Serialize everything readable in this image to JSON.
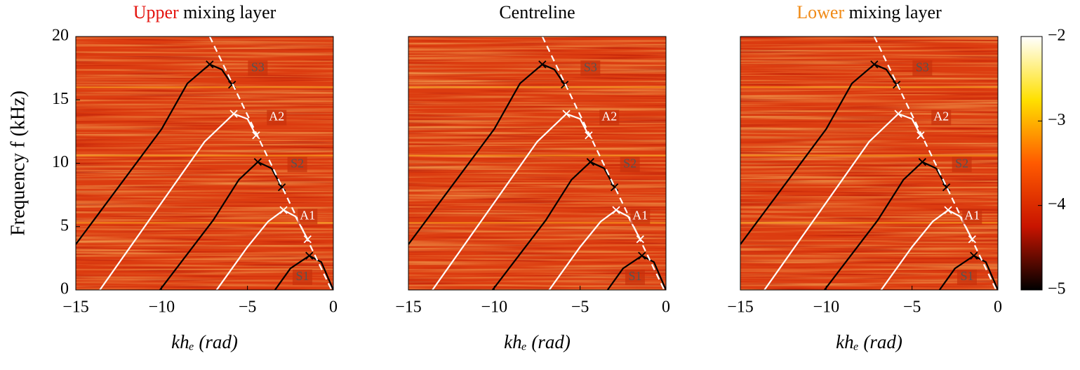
{
  "chart_data": [
    {
      "type": "line",
      "title_parts": [
        {
          "text": "Upper",
          "color": "#e4140f"
        },
        {
          "text": " mixing layer",
          "color": "#000"
        }
      ],
      "xlim": [
        -15,
        0
      ],
      "ylim": [
        0,
        20
      ],
      "xticks": [
        {
          "value": -15,
          "label": "−15"
        },
        {
          "value": -10,
          "label": "−10"
        },
        {
          "value": -5,
          "label": "−5"
        },
        0
      ],
      "yticks": [
        0,
        5,
        10,
        15,
        20
      ],
      "x_label": "khₑ (rad)",
      "y_label": "Frequency f (kHz)",
      "tones": [
        5.3,
        10.6,
        16
      ],
      "series": [
        {
          "color": "#000",
          "x": [
            -15,
            -10,
            -8.5,
            -7.2,
            -6.5,
            -5.9
          ],
          "values": [
            3.6,
            12.7,
            16.3,
            17.8,
            17.4,
            16.2
          ],
          "marker_x": [
            -7.2,
            -5.9
          ],
          "marker_y": [
            17.8,
            16.2
          ]
        },
        {
          "color": "#fff",
          "x": [
            -13.6,
            -10,
            -7.5,
            -5.8,
            -5,
            -4.5
          ],
          "values": [
            0,
            6.9,
            11.7,
            13.9,
            13.5,
            12.2
          ],
          "marker_x": [
            -5.8,
            -4.5
          ],
          "marker_y": [
            13.9,
            12.2
          ]
        },
        {
          "color": "#000",
          "x": [
            -10.1,
            -7,
            -5.5,
            -4.4,
            -3.6,
            -3
          ],
          "values": [
            0,
            5.5,
            8.7,
            10.1,
            9.6,
            8.1
          ],
          "marker_x": [
            -4.4,
            -3
          ],
          "marker_y": [
            10.1,
            8.1
          ]
        },
        {
          "color": "#fff",
          "x": [
            -6.8,
            -5,
            -3.8,
            -2.9,
            -2.2,
            -1.5
          ],
          "values": [
            0,
            3.4,
            5.4,
            6.3,
            5.8,
            4
          ],
          "marker_x": [
            -2.9,
            -1.5
          ],
          "marker_y": [
            6.3,
            4
          ]
        },
        {
          "color": "#000",
          "x": [
            -3.4,
            -2.5,
            -1.4,
            -0.7,
            0
          ],
          "values": [
            0,
            1.7,
            2.7,
            2.2,
            0
          ],
          "marker_x": [
            -1.4
          ],
          "marker_y": [
            2.7
          ]
        },
        {
          "color": "#fff",
          "dash": true,
          "x": [
            -7.2,
            -0.1
          ],
          "values": [
            20,
            0
          ]
        }
      ],
      "annotations": [
        {
          "text": "S3",
          "x": -4.4,
          "y": 17.5,
          "color": "#555"
        },
        {
          "text": "A2",
          "x": -3.3,
          "y": 13.6,
          "color": "#fff"
        },
        {
          "text": "S2",
          "x": -2.1,
          "y": 9.9,
          "color": "#555"
        },
        {
          "text": "A1",
          "x": -1.5,
          "y": 5.8,
          "color": "#fff"
        },
        {
          "text": "S1",
          "x": -1.8,
          "y": 1.0,
          "color": "#555"
        }
      ]
    },
    {
      "type": "line",
      "title_parts": [
        {
          "text": "Centreline",
          "color": "#000"
        }
      ],
      "xlim": [
        -15,
        0
      ],
      "ylim": [
        0,
        20
      ],
      "xticks": [
        {
          "value": -15,
          "label": "−15"
        },
        {
          "value": -10,
          "label": "−10"
        },
        {
          "value": -5,
          "label": "−5"
        },
        0
      ],
      "x_label": "khₑ (rad)",
      "tones": [
        5.3,
        10.6,
        16
      ],
      "series": [
        {
          "color": "#000",
          "x": [
            -15,
            -10,
            -8.5,
            -7.2,
            -6.5,
            -5.9
          ],
          "values": [
            3.6,
            12.7,
            16.3,
            17.8,
            17.4,
            16.2
          ],
          "marker_x": [
            -7.2,
            -5.9
          ],
          "marker_y": [
            17.8,
            16.2
          ]
        },
        {
          "color": "#fff",
          "x": [
            -13.6,
            -10,
            -7.5,
            -5.8,
            -5,
            -4.5
          ],
          "values": [
            0,
            6.9,
            11.7,
            13.9,
            13.5,
            12.2
          ],
          "marker_x": [
            -5.8,
            -4.5
          ],
          "marker_y": [
            13.9,
            12.2
          ]
        },
        {
          "color": "#000",
          "x": [
            -10.1,
            -7,
            -5.5,
            -4.4,
            -3.6,
            -3
          ],
          "values": [
            0,
            5.5,
            8.7,
            10.1,
            9.6,
            8.1
          ],
          "marker_x": [
            -4.4,
            -3
          ],
          "marker_y": [
            10.1,
            8.1
          ]
        },
        {
          "color": "#fff",
          "x": [
            -6.8,
            -5,
            -3.8,
            -2.9,
            -2.2,
            -1.5
          ],
          "values": [
            0,
            3.4,
            5.4,
            6.3,
            5.8,
            4
          ],
          "marker_x": [
            -2.9,
            -1.5
          ],
          "marker_y": [
            6.3,
            4
          ]
        },
        {
          "color": "#000",
          "x": [
            -3.4,
            -2.5,
            -1.4,
            -0.7,
            0
          ],
          "values": [
            0,
            1.7,
            2.7,
            2.2,
            0
          ],
          "marker_x": [
            -1.4
          ],
          "marker_y": [
            2.7
          ]
        },
        {
          "color": "#fff",
          "dash": true,
          "x": [
            -7.2,
            -0.1
          ],
          "values": [
            20,
            0
          ]
        }
      ],
      "annotations": [
        {
          "text": "S3",
          "x": -4.4,
          "y": 17.5,
          "color": "#555"
        },
        {
          "text": "A2",
          "x": -3.3,
          "y": 13.6,
          "color": "#fff"
        },
        {
          "text": "S2",
          "x": -2.1,
          "y": 9.9,
          "color": "#555"
        },
        {
          "text": "A1",
          "x": -1.5,
          "y": 5.8,
          "color": "#fff"
        },
        {
          "text": "S1",
          "x": -1.8,
          "y": 1.0,
          "color": "#555"
        }
      ]
    },
    {
      "type": "line",
      "title_parts": [
        {
          "text": "Lower",
          "color": "#f08a16"
        },
        {
          "text": " mixing layer",
          "color": "#000"
        }
      ],
      "xlim": [
        -15,
        0
      ],
      "ylim": [
        0,
        20
      ],
      "xticks": [
        {
          "value": -15,
          "label": "−15"
        },
        {
          "value": -10,
          "label": "−10"
        },
        {
          "value": -5,
          "label": "−5"
        },
        0
      ],
      "x_label": "khₑ (rad)",
      "tones": [
        5.3,
        10.6,
        16
      ],
      "series": [
        {
          "color": "#000",
          "x": [
            -15,
            -10,
            -8.5,
            -7.2,
            -6.5,
            -5.9
          ],
          "values": [
            3.6,
            12.7,
            16.3,
            17.8,
            17.4,
            16.2
          ],
          "marker_x": [
            -7.2,
            -5.9
          ],
          "marker_y": [
            17.8,
            16.2
          ]
        },
        {
          "color": "#fff",
          "x": [
            -13.6,
            -10,
            -7.5,
            -5.8,
            -5,
            -4.5
          ],
          "values": [
            0,
            6.9,
            11.7,
            13.9,
            13.5,
            12.2
          ],
          "marker_x": [
            -5.8,
            -4.5
          ],
          "marker_y": [
            13.9,
            12.2
          ]
        },
        {
          "color": "#000",
          "x": [
            -10.1,
            -7,
            -5.5,
            -4.4,
            -3.6,
            -3
          ],
          "values": [
            0,
            5.5,
            8.7,
            10.1,
            9.6,
            8.1
          ],
          "marker_x": [
            -4.4,
            -3
          ],
          "marker_y": [
            10.1,
            8.1
          ]
        },
        {
          "color": "#fff",
          "x": [
            -6.8,
            -5,
            -3.8,
            -2.9,
            -2.2,
            -1.5
          ],
          "values": [
            0,
            3.4,
            5.4,
            6.3,
            5.8,
            4
          ],
          "marker_x": [
            -2.9,
            -1.5
          ],
          "marker_y": [
            6.3,
            4
          ]
        },
        {
          "color": "#000",
          "x": [
            -3.4,
            -2.5,
            -1.4,
            -0.7,
            0
          ],
          "values": [
            0,
            1.7,
            2.7,
            2.2,
            0
          ],
          "marker_x": [
            -1.4
          ],
          "marker_y": [
            2.7
          ]
        },
        {
          "color": "#fff",
          "dash": true,
          "x": [
            -7.2,
            -0.1
          ],
          "values": [
            20,
            0
          ]
        }
      ],
      "annotations": [
        {
          "text": "S3",
          "x": -4.4,
          "y": 17.5,
          "color": "#555"
        },
        {
          "text": "A2",
          "x": -3.3,
          "y": 13.6,
          "color": "#fff"
        },
        {
          "text": "S2",
          "x": -2.1,
          "y": 9.9,
          "color": "#555"
        },
        {
          "text": "A1",
          "x": -1.5,
          "y": 5.8,
          "color": "#fff"
        },
        {
          "text": "S1",
          "x": -1.8,
          "y": 1.0,
          "color": "#555"
        }
      ]
    },
    {
      "type": "colorbar",
      "ylim": [
        -5,
        -2
      ],
      "yticks": [
        {
          "value": -2,
          "label": "−2"
        },
        {
          "value": -3,
          "label": "−3"
        },
        {
          "value": -4,
          "label": "−4"
        },
        {
          "value": -5,
          "label": "−5"
        }
      ],
      "colors": [
        "#000000",
        "#c81400",
        "#ff5a00",
        "#ffe000",
        "#ffffff"
      ]
    }
  ]
}
